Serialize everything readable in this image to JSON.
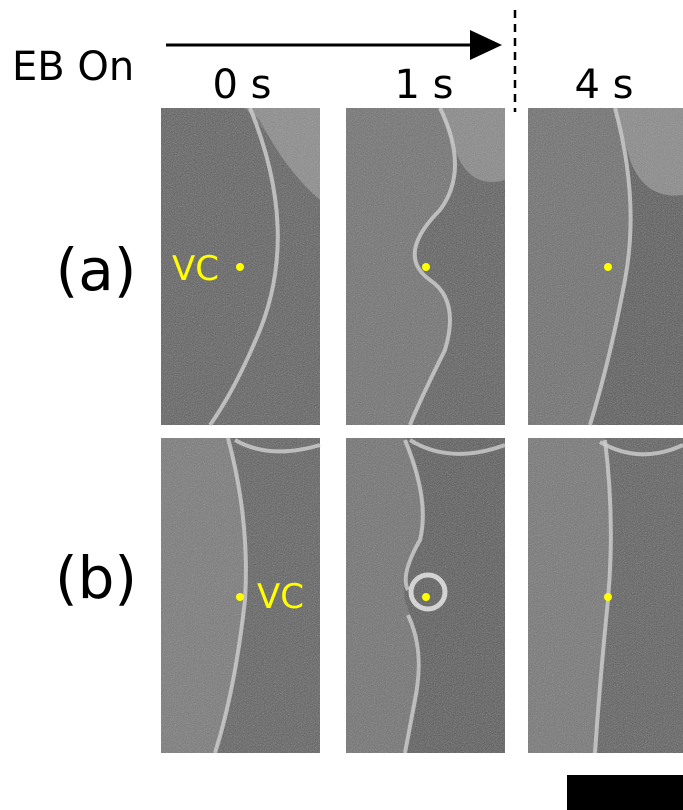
{
  "header": {
    "label": "EB On",
    "times": [
      "0 s",
      "1 s",
      "4 s"
    ]
  },
  "rows": [
    {
      "label": "(a)",
      "annotation": "VC"
    },
    {
      "label": "(b)",
      "annotation": "VC"
    }
  ]
}
